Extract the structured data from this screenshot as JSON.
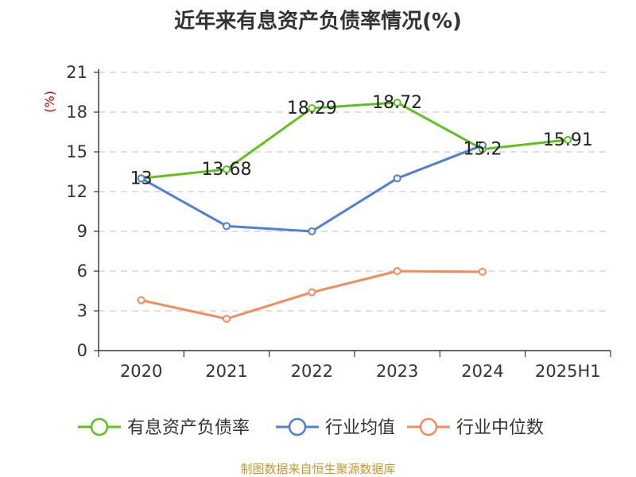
{
  "title": "近年来有息资产负债率情况(%)",
  "source": "制图数据来自恒生聚源数据库",
  "chart_data": {
    "type": "line",
    "title": "近年来有息资产负债率情况(%)",
    "ylabel": "(%)",
    "xlabel": "",
    "categories": [
      "2020",
      "2021",
      "2022",
      "2023",
      "2024",
      "2025H1"
    ],
    "ylim": [
      0,
      21
    ],
    "yticks": [
      0,
      3,
      6,
      9,
      12,
      15,
      18,
      21
    ],
    "grid": true,
    "legend_position": "bottom",
    "series": [
      {
        "name": "有息资产负债率",
        "color": "#5ec11e",
        "values": [
          13,
          13.68,
          18.29,
          18.72,
          15.2,
          15.91
        ],
        "labels": [
          "13",
          "13.68",
          "18.29",
          "18.72",
          "15.2",
          "15.91"
        ]
      },
      {
        "name": "行业均值",
        "color": "#4f7fd9",
        "values": [
          13,
          9.4,
          9.0,
          13.0,
          15.5,
          null
        ]
      },
      {
        "name": "行业中位数",
        "color": "#f28c5c",
        "values": [
          3.8,
          2.4,
          4.4,
          6.0,
          5.95,
          null
        ]
      }
    ]
  }
}
